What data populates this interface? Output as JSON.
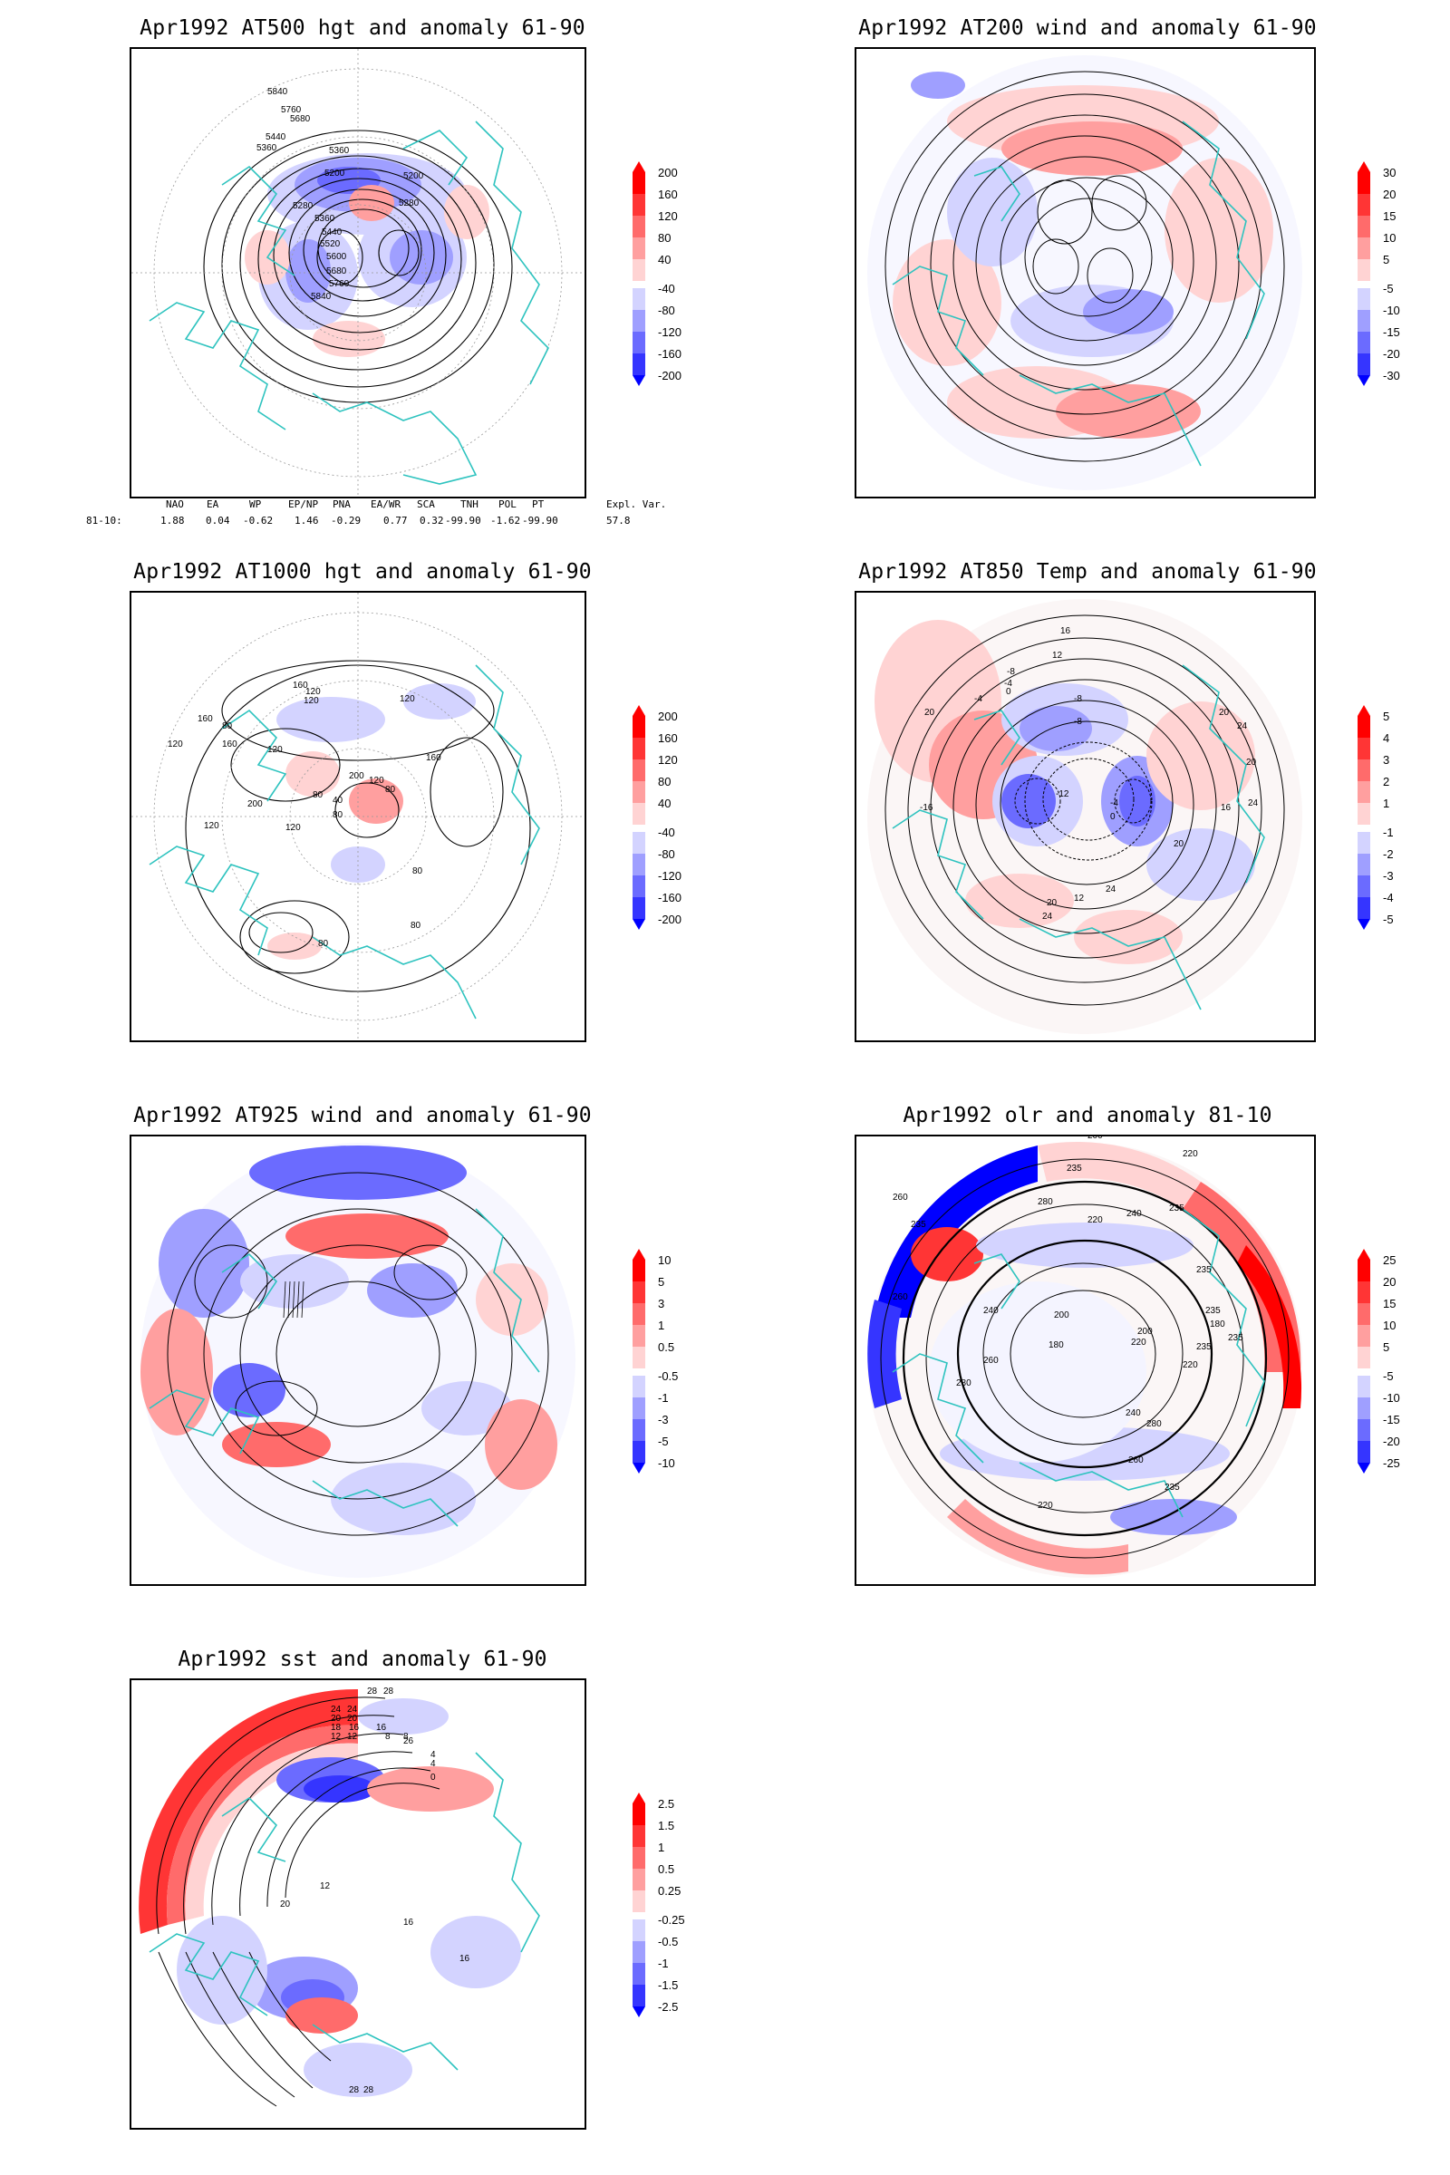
{
  "panels": [
    {
      "title": "Apr1992 AT500 hgt and anomaly 61-90",
      "colorbar": [
        "200",
        "160",
        "120",
        "80",
        "40",
        "-40",
        "-80",
        "-120",
        "-160",
        "-200"
      ],
      "contour_labels": [
        "5840",
        "5760",
        "5680",
        "5440",
        "5360",
        "5360",
        "5200",
        "5200",
        "5280",
        "5280",
        "5360",
        "5440",
        "5520",
        "5600",
        "5680",
        "5760",
        "5840"
      ]
    },
    {
      "title": "Apr1992 AT200 wind and anomaly 61-90",
      "colorbar": [
        "30",
        "20",
        "15",
        "10",
        "5",
        "-5",
        "-10",
        "-15",
        "-20",
        "-30"
      ],
      "contour_labels": []
    },
    {
      "title": "Apr1992 AT1000 hgt and anomaly 61-90",
      "colorbar": [
        "200",
        "160",
        "120",
        "80",
        "40",
        "-40",
        "-80",
        "-120",
        "-160",
        "-200"
      ],
      "contour_labels": [
        "160",
        "120",
        "120",
        "120",
        "160",
        "80",
        "120",
        "160",
        "120",
        "80",
        "200",
        "120",
        "80",
        "40",
        "80",
        "160",
        "200",
        "120",
        "120",
        "80",
        "80",
        "80"
      ]
    },
    {
      "title": "Apr1992 AT850 Temp and anomaly 61-90",
      "colorbar": [
        "5",
        "4",
        "3",
        "2",
        "1",
        "-1",
        "-2",
        "-3",
        "-4",
        "-5"
      ],
      "contour_labels": [
        "16",
        "12",
        "-8",
        "-4",
        "0",
        "-4",
        "20",
        "-8",
        "-8",
        "20",
        "24",
        "-16",
        "-12",
        "-4",
        "0",
        "20",
        "24",
        "16",
        "20",
        "24",
        "20",
        "24",
        "12"
      ]
    },
    {
      "title": "Apr1992 AT925 wind and anomaly 61-90",
      "colorbar": [
        "10",
        "5",
        "3",
        "1",
        "0.5",
        "-0.5",
        "-1",
        "-3",
        "-5",
        "-10"
      ],
      "contour_labels": []
    },
    {
      "title": "Apr1992 olr and anomaly 81-10",
      "colorbar": [
        "25",
        "20",
        "15",
        "10",
        "5",
        "-5",
        "-10",
        "-15",
        "-20",
        "-25"
      ],
      "contour_labels": [
        "200",
        "220",
        "235",
        "260",
        "280",
        "235",
        "240",
        "220",
        "235",
        "235",
        "260",
        "240",
        "200",
        "180",
        "235",
        "180",
        "200",
        "220",
        "235",
        "260",
        "240",
        "280",
        "220",
        "235",
        "280",
        "260",
        "235",
        "220"
      ]
    },
    {
      "title": "Apr1992 sst and anomaly 61-90",
      "colorbar": [
        "2.5",
        "1.5",
        "1",
        "0.5",
        "0.25",
        "-0.25",
        "-0.5",
        "-1",
        "-1.5",
        "-2.5"
      ],
      "contour_labels": [
        "28",
        "28",
        "24",
        "24",
        "20",
        "20",
        "16",
        "18",
        "16",
        "12",
        "12",
        "8",
        "8",
        "26",
        "4",
        "4",
        "0",
        "12",
        "20",
        "16",
        "16",
        "28",
        "28"
      ]
    }
  ],
  "indices": {
    "headers": [
      "NAO",
      "EA",
      "WP",
      "EP/NP",
      "PNA",
      "EA/WR",
      "SCA",
      "TNH",
      "POL",
      "PT",
      "Expl. Var."
    ],
    "row_label": "81-10:",
    "values": [
      "1.88",
      "0.04",
      "-0.62",
      "1.46",
      "-0.29",
      "0.77",
      "0.32",
      "-99.90",
      "-1.62",
      "-99.90",
      "57.8"
    ]
  },
  "colors": {
    "red_scale": [
      "#ff0000",
      "#ff3535",
      "#ff6b6b",
      "#ff9f9f",
      "#ffd3d3"
    ],
    "blue_scale": [
      "#d3d3ff",
      "#9f9fff",
      "#6b6bff",
      "#3535ff",
      "#0000ff"
    ],
    "coast": "#2ec3bf",
    "contour": "#000000"
  }
}
